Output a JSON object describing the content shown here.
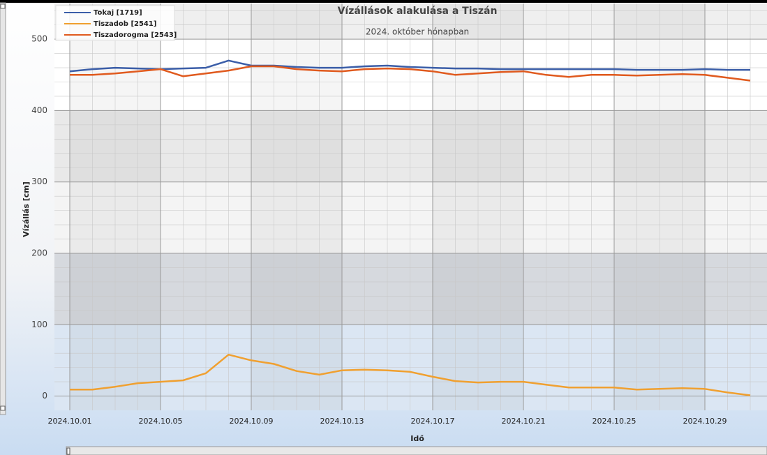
{
  "chart_data": {
    "type": "line",
    "title": "Vízállások alakulása a Tiszán",
    "subtitle": "2024. október hónapban",
    "y_label": "Vízállás [cm]",
    "x_label": "Idő",
    "x": [
      "2024.10.01",
      "2024.10.02",
      "2024.10.03",
      "2024.10.04",
      "2024.10.05",
      "2024.10.06",
      "2024.10.07",
      "2024.10.08",
      "2024.10.09",
      "2024.10.10",
      "2024.10.11",
      "2024.10.12",
      "2024.10.13",
      "2024.10.14",
      "2024.10.15",
      "2024.10.16",
      "2024.10.17",
      "2024.10.18",
      "2024.10.19",
      "2024.10.20",
      "2024.10.21",
      "2024.10.22",
      "2024.10.23",
      "2024.10.24",
      "2024.10.25",
      "2024.10.26",
      "2024.10.27",
      "2024.10.28",
      "2024.10.29",
      "2024.10.30",
      "2024.10.31"
    ],
    "series": [
      {
        "name": "Tokaj [1719]",
        "color": "#3b5ea8",
        "values": [
          455,
          458,
          460,
          459,
          458,
          459,
          460,
          470,
          463,
          463,
          461,
          460,
          460,
          462,
          463,
          461,
          460,
          459,
          459,
          458,
          458,
          458,
          458,
          458,
          458,
          457,
          457,
          457,
          458,
          457,
          457
        ]
      },
      {
        "name": "Tiszadob [2541]",
        "color": "#f0a030",
        "values": [
          9,
          9,
          13,
          18,
          20,
          22,
          32,
          58,
          50,
          45,
          35,
          30,
          36,
          37,
          36,
          34,
          27,
          21,
          19,
          20,
          20,
          16,
          12,
          12,
          12,
          9,
          10,
          11,
          10,
          5,
          1
        ]
      },
      {
        "name": "Tiszadorogma [2543]",
        "color": "#e05a1e",
        "values": [
          450,
          450,
          452,
          455,
          458,
          448,
          452,
          456,
          462,
          462,
          458,
          456,
          455,
          458,
          459,
          458,
          455,
          450,
          452,
          454,
          455,
          450,
          447,
          450,
          450,
          449,
          450,
          451,
          450,
          446,
          442
        ]
      }
    ],
    "xlim": [
      "2024.10.01",
      "2024.10.31"
    ],
    "xticks": [
      "2024.10.01",
      "2024.10.05",
      "2024.10.09",
      "2024.10.13",
      "2024.10.17",
      "2024.10.21",
      "2024.10.25",
      "2024.10.29"
    ],
    "ylim": [
      -20,
      550
    ],
    "yticks": [
      0,
      100,
      200,
      300,
      400,
      500
    ],
    "grid": true,
    "legend": "top-left"
  }
}
